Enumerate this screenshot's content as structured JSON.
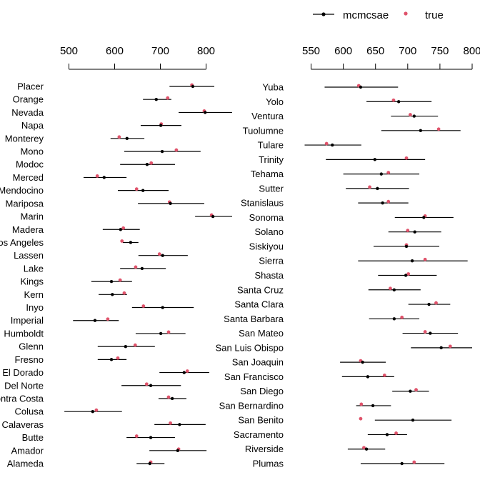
{
  "chart_data": {
    "type": "dot-interval",
    "title": "",
    "colors": {
      "estimate": "#000000",
      "true": "#DF536B",
      "axis": "#000000"
    },
    "legend": {
      "position": "top-right",
      "entries": [
        {
          "label": "mcmcsae",
          "marker": "line-dot",
          "color": "#000000"
        },
        {
          "label": "true",
          "marker": "dot",
          "color": "#DF536B"
        }
      ]
    },
    "panels": [
      {
        "name": "left",
        "xlim": [
          500,
          800
        ],
        "ticks": [
          500,
          600,
          700,
          800
        ],
        "tick_labels": [
          "500",
          "600",
          "700",
          "800"
        ],
        "rows": [
          {
            "label": "Placer",
            "lower": 720,
            "est": 771,
            "upper": 818,
            "true": 769
          },
          {
            "label": "Orange",
            "lower": 662,
            "est": 691,
            "upper": 724,
            "true": 716
          },
          {
            "label": "Nevada",
            "lower": 740,
            "est": 798,
            "upper": 857,
            "true": 796
          },
          {
            "label": "Napa",
            "lower": 657,
            "est": 701,
            "upper": 746,
            "true": 702
          },
          {
            "label": "Monterey",
            "lower": 591,
            "est": 627,
            "upper": 665,
            "true": 610
          },
          {
            "label": "Mono",
            "lower": 621,
            "est": 704,
            "upper": 788,
            "true": 735
          },
          {
            "label": "Modoc",
            "lower": 612,
            "est": 671,
            "upper": 732,
            "true": 680
          },
          {
            "label": "Merced",
            "lower": 532,
            "est": 577,
            "upper": 626,
            "true": 562
          },
          {
            "label": "Mendocino",
            "lower": 607,
            "est": 662,
            "upper": 718,
            "true": 648
          },
          {
            "label": "Mariposa",
            "lower": 651,
            "est": 722,
            "upper": 796,
            "true": 720
          },
          {
            "label": "Marin",
            "lower": 776,
            "est": 815,
            "upper": 857,
            "true": 812
          },
          {
            "label": "Madera",
            "lower": 574,
            "est": 613,
            "upper": 655,
            "true": 619
          },
          {
            "label": "Los Angeles",
            "lower": 618,
            "est": 635,
            "upper": 652,
            "true": 616
          },
          {
            "label": "Lassen",
            "lower": 652,
            "est": 705,
            "upper": 760,
            "true": 698
          },
          {
            "label": "Lake",
            "lower": 612,
            "est": 660,
            "upper": 712,
            "true": 646
          },
          {
            "label": "Kings",
            "lower": 549,
            "est": 593,
            "upper": 638,
            "true": 612
          },
          {
            "label": "Kern",
            "lower": 565,
            "est": 595,
            "upper": 627,
            "true": 621
          },
          {
            "label": "Inyo",
            "lower": 638,
            "est": 705,
            "upper": 773,
            "true": 663
          },
          {
            "label": "Imperial",
            "lower": 509,
            "est": 557,
            "upper": 609,
            "true": 585
          },
          {
            "label": "Humboldt",
            "lower": 646,
            "est": 701,
            "upper": 755,
            "true": 718
          },
          {
            "label": "Glenn",
            "lower": 563,
            "est": 624,
            "upper": 688,
            "true": 645
          },
          {
            "label": "Fresno",
            "lower": 563,
            "est": 593,
            "upper": 626,
            "true": 607
          },
          {
            "label": "El Dorado",
            "lower": 698,
            "est": 752,
            "upper": 807,
            "true": 759
          },
          {
            "label": "Del Norte",
            "lower": 615,
            "est": 679,
            "upper": 745,
            "true": 670
          },
          {
            "label": "Contra Costa",
            "lower": 696,
            "est": 726,
            "upper": 757,
            "true": 718
          },
          {
            "label": "Colusa",
            "lower": 490,
            "est": 552,
            "upper": 616,
            "true": 560
          },
          {
            "label": "Calaveras",
            "lower": 687,
            "est": 742,
            "upper": 799,
            "true": 722
          },
          {
            "label": "Butte",
            "lower": 626,
            "est": 679,
            "upper": 732,
            "true": 648
          },
          {
            "label": "Amador",
            "lower": 676,
            "est": 738,
            "upper": 801,
            "true": 740
          },
          {
            "label": "Alameda",
            "lower": 648,
            "est": 677,
            "upper": 709,
            "true": 679
          }
        ]
      },
      {
        "name": "right",
        "xlim": [
          550,
          800
        ],
        "ticks": [
          550,
          600,
          650,
          700,
          750,
          800
        ],
        "tick_labels": [
          "550",
          "600",
          "650",
          "700",
          "750",
          "800"
        ],
        "rows": [
          {
            "label": "Yuba",
            "lower": 571,
            "est": 627,
            "upper": 685,
            "true": 624
          },
          {
            "label": "Yolo",
            "lower": 636,
            "est": 686,
            "upper": 737,
            "true": 678
          },
          {
            "label": "Ventura",
            "lower": 674,
            "est": 710,
            "upper": 747,
            "true": 704
          },
          {
            "label": "Tuolumne",
            "lower": 659,
            "est": 720,
            "upper": 782,
            "true": 748
          },
          {
            "label": "Tulare",
            "lower": 540,
            "est": 583,
            "upper": 628,
            "true": 574
          },
          {
            "label": "Trinity",
            "lower": 573,
            "est": 649,
            "upper": 727,
            "true": 698
          },
          {
            "label": "Tehama",
            "lower": 600,
            "est": 659,
            "upper": 718,
            "true": 670
          },
          {
            "label": "Sutter",
            "lower": 604,
            "est": 653,
            "upper": 702,
            "true": 641
          },
          {
            "label": "Stanislaus",
            "lower": 623,
            "est": 661,
            "upper": 701,
            "true": 670
          },
          {
            "label": "Sonoma",
            "lower": 680,
            "est": 725,
            "upper": 771,
            "true": 727
          },
          {
            "label": "Solano",
            "lower": 670,
            "est": 711,
            "upper": 752,
            "true": 700
          },
          {
            "label": "Siskiyou",
            "lower": 647,
            "est": 698,
            "upper": 749,
            "true": 698
          },
          {
            "label": "Sierra",
            "lower": 623,
            "est": 707,
            "upper": 793,
            "true": 727
          },
          {
            "label": "Shasta",
            "lower": 654,
            "est": 697,
            "upper": 745,
            "true": 701
          },
          {
            "label": "Santa Cruz",
            "lower": 639,
            "est": 679,
            "upper": 720,
            "true": 673
          },
          {
            "label": "Santa Clara",
            "lower": 701,
            "est": 733,
            "upper": 766,
            "true": 744
          },
          {
            "label": "Santa Barbara",
            "lower": 640,
            "est": 679,
            "upper": 718,
            "true": 691
          },
          {
            "label": "San Mateo",
            "lower": 692,
            "est": 735,
            "upper": 778,
            "true": 727
          },
          {
            "label": "San Luis Obispo",
            "lower": 705,
            "est": 752,
            "upper": 800,
            "true": 766
          },
          {
            "label": "San Joaquin",
            "lower": 595,
            "est": 630,
            "upper": 666,
            "true": 627
          },
          {
            "label": "San Francisco",
            "lower": 598,
            "est": 638,
            "upper": 679,
            "true": 664
          },
          {
            "label": "San Diego",
            "lower": 676,
            "est": 704,
            "upper": 733,
            "true": 713
          },
          {
            "label": "San Bernardino",
            "lower": 620,
            "est": 646,
            "upper": 674,
            "true": 628
          },
          {
            "label": "San Benito",
            "lower": 649,
            "est": 708,
            "upper": 768,
            "true": 627
          },
          {
            "label": "Sacramento",
            "lower": 638,
            "est": 668,
            "upper": 699,
            "true": 682
          },
          {
            "label": "Riverside",
            "lower": 607,
            "est": 636,
            "upper": 665,
            "true": 632
          },
          {
            "label": "Plumas",
            "lower": 627,
            "est": 691,
            "upper": 757,
            "true": 710
          }
        ]
      }
    ]
  }
}
